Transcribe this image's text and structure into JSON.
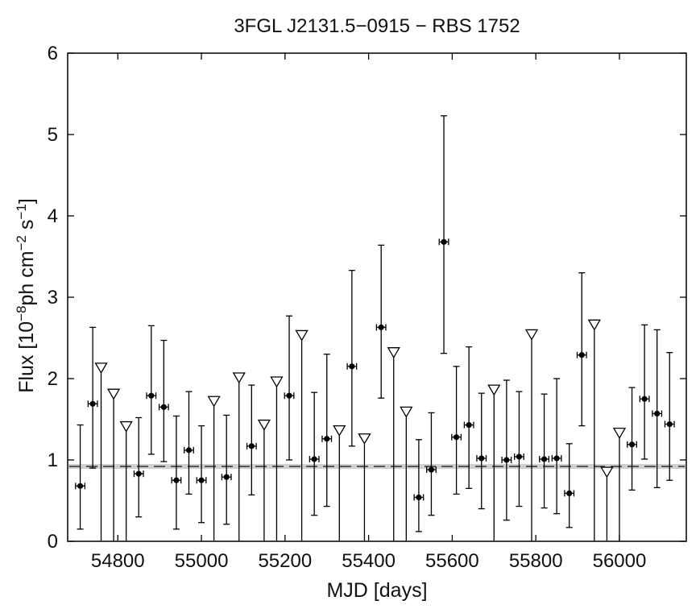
{
  "chart_data": {
    "type": "scatter",
    "title": "3FGL J2131.5−0915 − RBS 1752",
    "xlabel": "MJD [days]",
    "ylabel": {
      "prefix": "Flux [10",
      "exp1": "−8",
      "mid": "ph cm",
      "exp2": "−2",
      "mid2": " s",
      "exp3": "−1",
      "suffix": "]"
    },
    "xlim": [
      54680,
      56160
    ],
    "ylim": [
      0,
      6
    ],
    "xticks": [
      54800,
      55000,
      55200,
      55400,
      55600,
      55800,
      56000
    ],
    "yticks": [
      0,
      1,
      2,
      3,
      4,
      5,
      6
    ],
    "bin_half_width_days": 15,
    "baseline": {
      "value": 0.92,
      "band": [
        0.89,
        0.95
      ]
    },
    "detections": [
      {
        "x": 54710,
        "y": 0.68,
        "lo": 0.15,
        "hi": 1.43
      },
      {
        "x": 54740,
        "y": 1.69,
        "lo": 0.9,
        "hi": 2.63
      },
      {
        "x": 54850,
        "y": 0.83,
        "lo": 0.3,
        "hi": 1.52
      },
      {
        "x": 54880,
        "y": 1.79,
        "lo": 1.07,
        "hi": 2.65
      },
      {
        "x": 54910,
        "y": 1.65,
        "lo": 0.98,
        "hi": 2.47
      },
      {
        "x": 54940,
        "y": 0.75,
        "lo": 0.15,
        "hi": 1.54
      },
      {
        "x": 54970,
        "y": 1.12,
        "lo": 0.58,
        "hi": 1.84
      },
      {
        "x": 55000,
        "y": 0.75,
        "lo": 0.23,
        "hi": 1.42
      },
      {
        "x": 55060,
        "y": 0.79,
        "lo": 0.21,
        "hi": 1.55
      },
      {
        "x": 55120,
        "y": 1.17,
        "lo": 0.57,
        "hi": 1.92
      },
      {
        "x": 55210,
        "y": 1.79,
        "lo": 1.0,
        "hi": 2.77
      },
      {
        "x": 55270,
        "y": 1.01,
        "lo": 0.32,
        "hi": 1.83
      },
      {
        "x": 55300,
        "y": 1.26,
        "lo": 0.43,
        "hi": 2.3
      },
      {
        "x": 55360,
        "y": 2.15,
        "lo": 1.17,
        "hi": 3.33
      },
      {
        "x": 55430,
        "y": 2.63,
        "lo": 1.76,
        "hi": 3.64
      },
      {
        "x": 55520,
        "y": 0.54,
        "lo": 0.12,
        "hi": 1.25
      },
      {
        "x": 55550,
        "y": 0.88,
        "lo": 0.32,
        "hi": 1.58
      },
      {
        "x": 55580,
        "y": 3.68,
        "lo": 2.31,
        "hi": 5.23
      },
      {
        "x": 55610,
        "y": 1.28,
        "lo": 0.58,
        "hi": 2.15
      },
      {
        "x": 55640,
        "y": 1.43,
        "lo": 0.65,
        "hi": 2.39
      },
      {
        "x": 55670,
        "y": 1.02,
        "lo": 0.4,
        "hi": 1.82
      },
      {
        "x": 55730,
        "y": 1.0,
        "lo": 0.26,
        "hi": 1.98
      },
      {
        "x": 55760,
        "y": 1.04,
        "lo": 0.43,
        "hi": 1.84
      },
      {
        "x": 55820,
        "y": 1.01,
        "lo": 0.41,
        "hi": 1.81
      },
      {
        "x": 55850,
        "y": 1.02,
        "lo": 0.34,
        "hi": 2.0
      },
      {
        "x": 55880,
        "y": 0.59,
        "lo": 0.17,
        "hi": 1.2
      },
      {
        "x": 55910,
        "y": 2.29,
        "lo": 1.42,
        "hi": 3.3
      },
      {
        "x": 56030,
        "y": 1.19,
        "lo": 0.63,
        "hi": 1.89
      },
      {
        "x": 56060,
        "y": 1.75,
        "lo": 1.01,
        "hi": 2.66
      },
      {
        "x": 56090,
        "y": 1.57,
        "lo": 0.66,
        "hi": 2.6
      },
      {
        "x": 56120,
        "y": 1.44,
        "lo": 0.75,
        "hi": 2.32
      }
    ],
    "upper_limits": [
      {
        "x": 54760,
        "y": 2.14
      },
      {
        "x": 54790,
        "y": 1.82
      },
      {
        "x": 54820,
        "y": 1.42
      },
      {
        "x": 55030,
        "y": 1.73
      },
      {
        "x": 55090,
        "y": 2.02
      },
      {
        "x": 55150,
        "y": 1.44
      },
      {
        "x": 55180,
        "y": 1.97
      },
      {
        "x": 55240,
        "y": 2.54
      },
      {
        "x": 55330,
        "y": 1.37
      },
      {
        "x": 55390,
        "y": 1.27
      },
      {
        "x": 55460,
        "y": 2.33
      },
      {
        "x": 55490,
        "y": 1.6
      },
      {
        "x": 55700,
        "y": 1.87
      },
      {
        "x": 55790,
        "y": 2.55
      },
      {
        "x": 55940,
        "y": 2.67
      },
      {
        "x": 55970,
        "y": 0.86
      },
      {
        "x": 56000,
        "y": 1.34
      }
    ]
  }
}
